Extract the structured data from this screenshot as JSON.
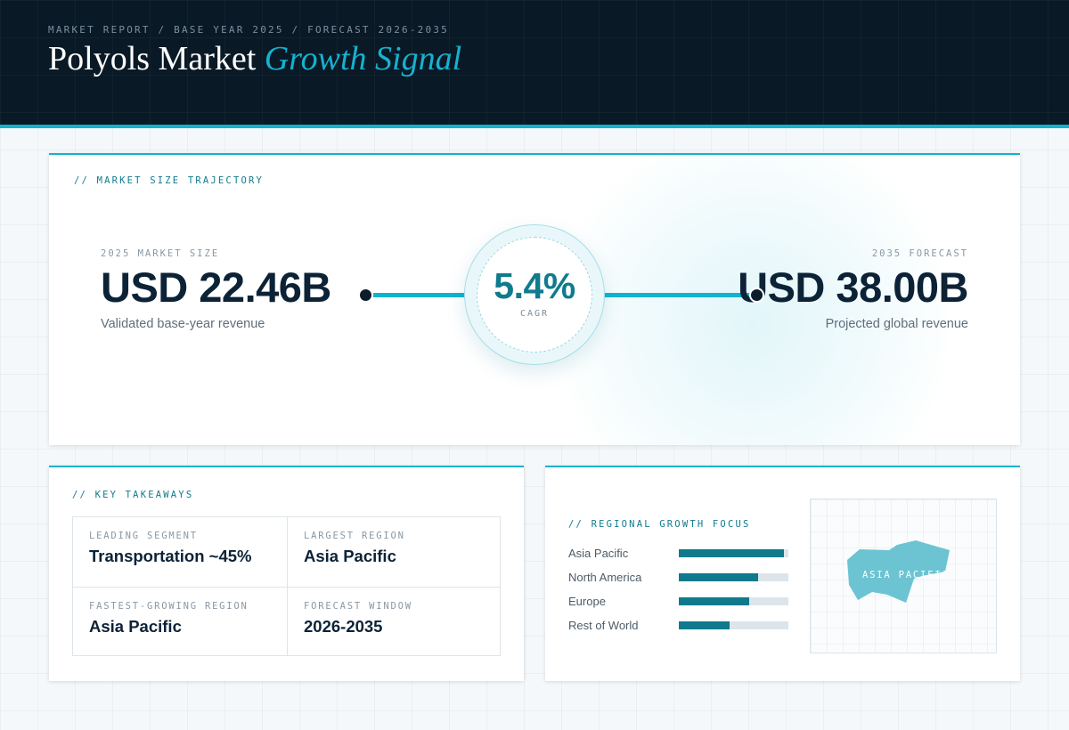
{
  "header": {
    "eyebrow": "MARKET REPORT / BASE YEAR 2025 / FORECAST 2026-2035",
    "title_main": "Polyols Market",
    "title_accent": "Growth Signal"
  },
  "trajectory": {
    "section_label": "// MARKET SIZE TRAJECTORY",
    "base": {
      "label": "2025 MARKET SIZE",
      "value": "USD 22.46B",
      "caption": "Validated base-year revenue"
    },
    "forecast": {
      "label": "2035 FORECAST",
      "value": "USD 38.00B",
      "caption": "Projected global revenue"
    },
    "cagr": {
      "value": "5.4%",
      "label": "CAGR"
    }
  },
  "takeaways": {
    "section_label": "// KEY TAKEAWAYS",
    "items": [
      {
        "label": "LEADING SEGMENT",
        "value": "Transportation ~45%"
      },
      {
        "label": "LARGEST REGION",
        "value": "Asia Pacific"
      },
      {
        "label": "FASTEST-GROWING REGION",
        "value": "Asia Pacific"
      },
      {
        "label": "FORECAST WINDOW",
        "value": "2026-2035"
      }
    ]
  },
  "regional": {
    "section_label": "// REGIONAL GROWTH FOCUS",
    "bars": [
      {
        "name": "Asia Pacific",
        "level": 0.96
      },
      {
        "name": "North America",
        "level": 0.72
      },
      {
        "name": "Europe",
        "level": 0.64
      },
      {
        "name": "Rest of World",
        "level": 0.46
      }
    ],
    "map_label": "ASIA PACIFIC",
    "colors": {
      "bar_fill": "#0e7a8c",
      "bar_track": "#dde5eb",
      "map_region": "#6cc4d2"
    }
  },
  "colors": {
    "accent": "#11b3cf",
    "header_bg": "#0a1926",
    "title": "#0c2236"
  }
}
